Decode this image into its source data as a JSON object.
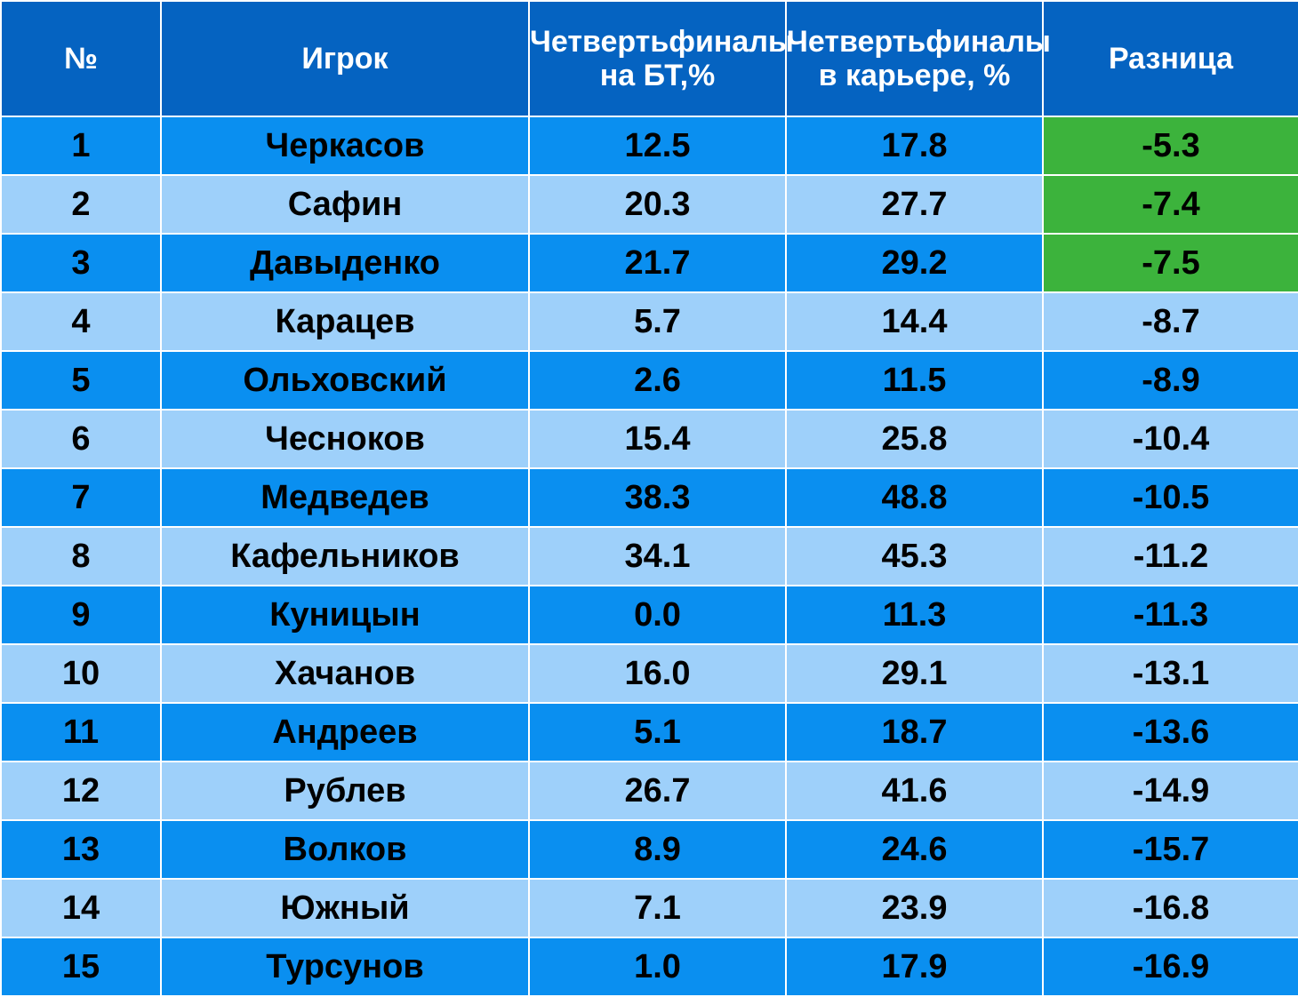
{
  "colors": {
    "header_bg": "#0563c1",
    "header_text": "#ffffff",
    "row_dark": "#0a8ff0",
    "row_light": "#9ed0fa",
    "highlight": "#3cb33c"
  },
  "table": {
    "headers": [
      "№",
      "Игрок",
      "Четвертьфиналы на БТ,%",
      "Четвертьфиналы в карьере, %",
      "Разница"
    ],
    "rows": [
      {
        "num": "1",
        "player": "Черкасов",
        "bt": "12.5",
        "career": "17.8",
        "diff": "-5.3",
        "highlight": true
      },
      {
        "num": "2",
        "player": "Сафин",
        "bt": "20.3",
        "career": "27.7",
        "diff": "-7.4",
        "highlight": true
      },
      {
        "num": "3",
        "player": "Давыденко",
        "bt": "21.7",
        "career": "29.2",
        "diff": "-7.5",
        "highlight": true
      },
      {
        "num": "4",
        "player": "Карацев",
        "bt": "5.7",
        "career": "14.4",
        "diff": "-8.7",
        "highlight": false
      },
      {
        "num": "5",
        "player": "Ольховский",
        "bt": "2.6",
        "career": "11.5",
        "diff": "-8.9",
        "highlight": false
      },
      {
        "num": "6",
        "player": "Чесноков",
        "bt": "15.4",
        "career": "25.8",
        "diff": "-10.4",
        "highlight": false
      },
      {
        "num": "7",
        "player": "Медведев",
        "bt": "38.3",
        "career": "48.8",
        "diff": "-10.5",
        "highlight": false
      },
      {
        "num": "8",
        "player": "Кафельников",
        "bt": "34.1",
        "career": "45.3",
        "diff": "-11.2",
        "highlight": false
      },
      {
        "num": "9",
        "player": "Куницын",
        "bt": "0.0",
        "career": "11.3",
        "diff": "-11.3",
        "highlight": false
      },
      {
        "num": "10",
        "player": "Хачанов",
        "bt": "16.0",
        "career": "29.1",
        "diff": "-13.1",
        "highlight": false
      },
      {
        "num": "11",
        "player": "Андреев",
        "bt": "5.1",
        "career": "18.7",
        "diff": "-13.6",
        "highlight": false
      },
      {
        "num": "12",
        "player": "Рублев",
        "bt": "26.7",
        "career": "41.6",
        "diff": "-14.9",
        "highlight": false
      },
      {
        "num": "13",
        "player": "Волков",
        "bt": "8.9",
        "career": "24.6",
        "diff": "-15.7",
        "highlight": false
      },
      {
        "num": "14",
        "player": "Южный",
        "bt": "7.1",
        "career": "23.9",
        "diff": "-16.8",
        "highlight": false
      },
      {
        "num": "15",
        "player": "Турсунов",
        "bt": "1.0",
        "career": "17.9",
        "diff": "-16.9",
        "highlight": false
      }
    ]
  }
}
